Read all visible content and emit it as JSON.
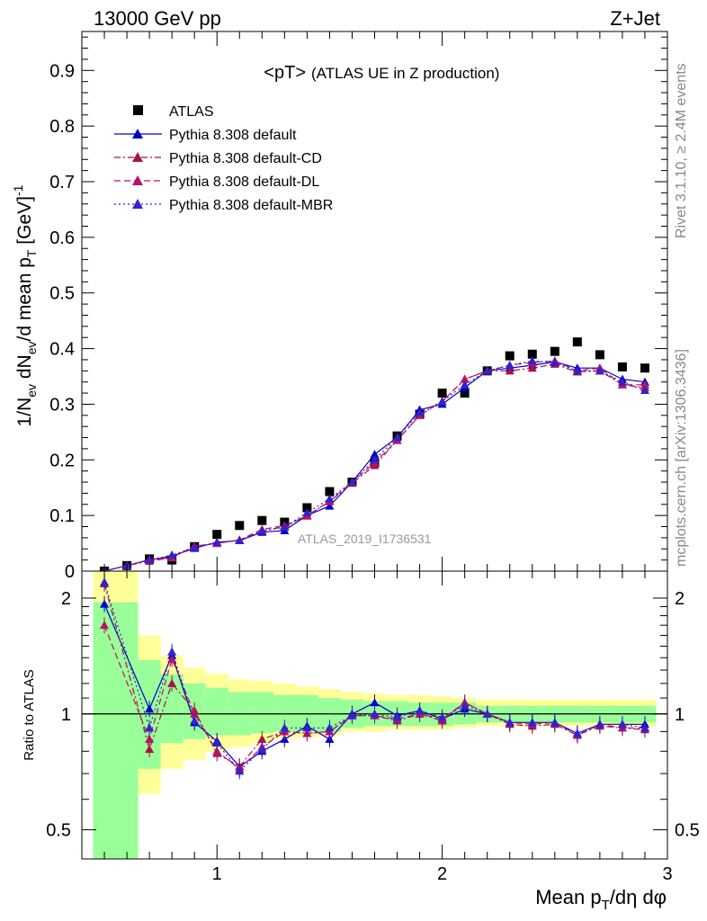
{
  "header": {
    "energy": "13000 GeV pp",
    "process": "Z+Jet",
    "title": "<pT>",
    "subtitle": "(ATLAS UE in Z production)",
    "watermark": "ATLAS_2019_I1736531",
    "rivet": "Rivet 3.1.10, ≥ 2.4M events",
    "source": "mcplots.cern.ch [arXiv:1306.3436]"
  },
  "chart_data": [
    {
      "type": "scatter",
      "panel": "main",
      "ylabel": "1/N_ev dN_ev/d mean p_T [GeV]^-1",
      "xlim": [
        0.4,
        3.0
      ],
      "ylim": [
        0,
        0.97
      ],
      "yticks": [
        "0",
        "0.1",
        "0.2",
        "0.3",
        "0.4",
        "0.5",
        "0.6",
        "0.7",
        "0.8",
        "0.9"
      ],
      "legend_position": "top-left",
      "x": [
        0.5,
        0.6,
        0.7,
        0.8,
        0.9,
        1.0,
        1.1,
        1.2,
        1.3,
        1.4,
        1.5,
        1.6,
        1.7,
        1.8,
        1.9,
        2.0,
        2.1,
        2.2,
        2.3,
        2.4,
        2.5,
        2.6,
        2.7,
        2.8,
        2.9
      ],
      "series": [
        {
          "name": "ATLAS",
          "marker": "square",
          "color": "#000000",
          "values": [
            0.0,
            0.01,
            0.022,
            0.02,
            0.044,
            0.066,
            0.082,
            0.091,
            0.088,
            0.114,
            0.143,
            0.16,
            0.195,
            0.243,
            0.282,
            0.32,
            0.32,
            0.36,
            0.387,
            0.39,
            0.395,
            0.412,
            0.389,
            0.367,
            0.365
          ]
        },
        {
          "name": "Pythia 8.308 default",
          "style": "solid",
          "color": "#0000cc",
          "values": [
            0.0,
            0.01,
            0.02,
            0.027,
            0.041,
            0.052,
            0.055,
            0.07,
            0.073,
            0.1,
            0.117,
            0.16,
            0.21,
            0.24,
            0.29,
            0.3,
            0.33,
            0.36,
            0.365,
            0.37,
            0.376,
            0.365,
            0.365,
            0.345,
            0.34
          ]
        },
        {
          "name": "Pythia 8.308 default-CD",
          "style": "dashdot",
          "color": "#aa1144",
          "values": [
            0.0,
            0.01,
            0.018,
            0.024,
            0.045,
            0.05,
            0.056,
            0.072,
            0.08,
            0.1,
            0.125,
            0.158,
            0.19,
            0.235,
            0.28,
            0.305,
            0.345,
            0.36,
            0.36,
            0.365,
            0.372,
            0.358,
            0.36,
            0.335,
            0.33
          ]
        },
        {
          "name": "Pythia 8.308 default-DL",
          "style": "dashed",
          "color": "#bb1166",
          "values": [
            0.0,
            0.01,
            0.021,
            0.024,
            0.045,
            0.05,
            0.056,
            0.075,
            0.082,
            0.099,
            0.126,
            0.16,
            0.195,
            0.235,
            0.28,
            0.305,
            0.345,
            0.36,
            0.37,
            0.375,
            0.378,
            0.36,
            0.365,
            0.335,
            0.335
          ]
        },
        {
          "name": "Pythia 8.308 default-MBR",
          "style": "dotted",
          "color": "#3322cc",
          "values": [
            0.0,
            0.01,
            0.02,
            0.029,
            0.042,
            0.052,
            0.055,
            0.072,
            0.079,
            0.105,
            0.13,
            0.16,
            0.2,
            0.24,
            0.285,
            0.305,
            0.335,
            0.36,
            0.37,
            0.378,
            0.375,
            0.36,
            0.36,
            0.34,
            0.325
          ]
        }
      ]
    },
    {
      "type": "line",
      "panel": "ratio",
      "ylabel": "Ratio to ATLAS",
      "xlabel": "Mean p_T/dη dφ",
      "xlim": [
        0.4,
        3.0
      ],
      "ylim": [
        0.42,
        2.35
      ],
      "log_y": true,
      "yticks": [
        "0.5",
        "1",
        "2"
      ],
      "xticks": [
        "1",
        "2",
        "3"
      ],
      "reference": 1,
      "x": [
        0.5,
        0.7,
        0.8,
        0.9,
        1.0,
        1.1,
        1.2,
        1.3,
        1.4,
        1.5,
        1.6,
        1.7,
        1.8,
        1.9,
        2.0,
        2.1,
        2.2,
        2.3,
        2.4,
        2.5,
        2.6,
        2.7,
        2.8,
        2.9
      ],
      "band_inner": [
        [
          0.42,
          1.95
        ],
        [
          0.72,
          1.38
        ],
        [
          0.84,
          1.27
        ],
        [
          0.86,
          1.2
        ],
        [
          0.88,
          1.17
        ],
        [
          0.88,
          1.14
        ],
        [
          0.89,
          1.14
        ],
        [
          0.9,
          1.12
        ],
        [
          0.9,
          1.12
        ],
        [
          0.9,
          1.1
        ],
        [
          0.92,
          1.09
        ],
        [
          0.93,
          1.08
        ],
        [
          0.93,
          1.08
        ],
        [
          0.93,
          1.07
        ],
        [
          0.93,
          1.07
        ],
        [
          0.94,
          1.07
        ],
        [
          0.95,
          1.05
        ],
        [
          0.95,
          1.05
        ],
        [
          0.95,
          1.05
        ],
        [
          0.95,
          1.05
        ],
        [
          0.95,
          1.05
        ],
        [
          0.95,
          1.05
        ],
        [
          0.95,
          1.05
        ],
        [
          0.95,
          1.05
        ]
      ],
      "band_outer": [
        [
          0.42,
          2.35
        ],
        [
          0.62,
          1.6
        ],
        [
          0.72,
          1.42
        ],
        [
          0.76,
          1.32
        ],
        [
          0.8,
          1.27
        ],
        [
          0.82,
          1.23
        ],
        [
          0.84,
          1.22
        ],
        [
          0.86,
          1.2
        ],
        [
          0.87,
          1.18
        ],
        [
          0.88,
          1.16
        ],
        [
          0.9,
          1.14
        ],
        [
          0.9,
          1.13
        ],
        [
          0.91,
          1.12
        ],
        [
          0.91,
          1.12
        ],
        [
          0.91,
          1.11
        ],
        [
          0.92,
          1.1
        ],
        [
          0.93,
          1.09
        ],
        [
          0.93,
          1.09
        ],
        [
          0.93,
          1.09
        ],
        [
          0.93,
          1.09
        ],
        [
          0.93,
          1.09
        ],
        [
          0.93,
          1.09
        ],
        [
          0.93,
          1.09
        ],
        [
          0.93,
          1.09
        ]
      ],
      "series": [
        {
          "name": "Pythia 8.308 default",
          "style": "solid",
          "color": "#0000cc",
          "values": [
            1.93,
            1.03,
            1.42,
            0.95,
            0.85,
            0.73,
            0.8,
            0.86,
            0.93,
            0.86,
            1.0,
            1.07,
            0.99,
            1.02,
            0.97,
            1.03,
            1.0,
            0.95,
            0.95,
            0.95,
            0.89,
            0.94,
            0.94,
            0.94
          ]
        },
        {
          "name": "Pythia 8.308 default-CD",
          "style": "dashdot",
          "color": "#aa1144",
          "values": [
            2.18,
            0.81,
            1.2,
            1.02,
            0.79,
            0.73,
            0.86,
            0.9,
            0.89,
            0.9,
            0.99,
            0.99,
            0.96,
            1.0,
            0.96,
            1.07,
            1.0,
            0.94,
            0.93,
            0.94,
            0.88,
            0.93,
            0.92,
            0.91
          ]
        },
        {
          "name": "Pythia 8.308 default-DL",
          "style": "dashed",
          "color": "#bb1166",
          "values": [
            1.7,
            0.86,
            1.39,
            1.0,
            0.8,
            0.72,
            0.82,
            0.9,
            0.89,
            0.9,
            0.99,
            0.99,
            0.97,
            1.0,
            0.97,
            1.07,
            1.0,
            0.95,
            0.94,
            0.95,
            0.88,
            0.94,
            0.92,
            0.92
          ]
        },
        {
          "name": "Pythia 8.308 default-MBR",
          "style": "dotted",
          "color": "#3322cc",
          "values": [
            2.2,
            0.92,
            1.45,
            0.96,
            0.84,
            0.71,
            0.81,
            0.92,
            0.92,
            0.92,
            0.99,
            1.0,
            0.98,
            1.02,
            0.98,
            1.05,
            1.0,
            0.95,
            0.95,
            0.95,
            0.89,
            0.94,
            0.94,
            0.92
          ]
        }
      ]
    }
  ]
}
